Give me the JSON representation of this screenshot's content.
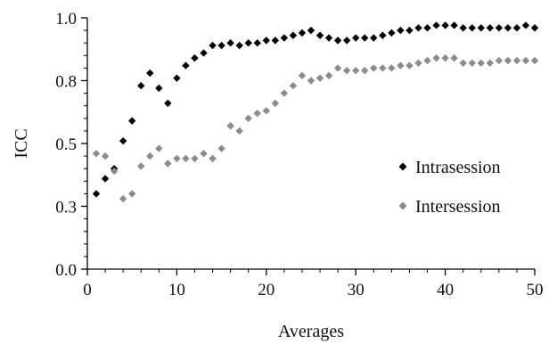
{
  "chart_data": {
    "type": "scatter",
    "xlabel": "Averages",
    "ylabel": "ICC",
    "xlim": [
      0,
      50
    ],
    "ylim": [
      0.0,
      1.0
    ],
    "x_ticks": [
      0,
      10,
      20,
      30,
      40,
      50
    ],
    "y_ticks": [
      0.0,
      0.25,
      0.5,
      0.75,
      1.0
    ],
    "x_tick_labels": [
      "0",
      "10",
      "20",
      "30",
      "40",
      "50"
    ],
    "y_tick_labels": [
      "0.0",
      "0.3",
      "0.5",
      "0.8",
      "1.0"
    ],
    "legend_position": "center-right",
    "grid": false,
    "series": [
      {
        "name": "Intrasession",
        "color": "#000000",
        "marker": "diamond",
        "x": [
          1,
          2,
          3,
          4,
          5,
          6,
          7,
          8,
          9,
          10,
          11,
          12,
          13,
          14,
          15,
          16,
          17,
          18,
          19,
          20,
          21,
          22,
          23,
          24,
          25,
          26,
          27,
          28,
          29,
          30,
          31,
          32,
          33,
          34,
          35,
          36,
          37,
          38,
          39,
          40,
          41,
          42,
          43,
          44,
          45,
          46,
          47,
          48,
          49,
          50
        ],
        "y": [
          0.3,
          0.36,
          0.4,
          0.51,
          0.59,
          0.73,
          0.78,
          0.72,
          0.66,
          0.76,
          0.81,
          0.84,
          0.86,
          0.89,
          0.89,
          0.9,
          0.89,
          0.9,
          0.9,
          0.91,
          0.91,
          0.92,
          0.93,
          0.94,
          0.95,
          0.93,
          0.92,
          0.91,
          0.91,
          0.92,
          0.92,
          0.92,
          0.93,
          0.94,
          0.95,
          0.95,
          0.96,
          0.96,
          0.97,
          0.97,
          0.97,
          0.96,
          0.96,
          0.96,
          0.96,
          0.96,
          0.96,
          0.96,
          0.97,
          0.96
        ]
      },
      {
        "name": "Intersession",
        "color": "#8c8c8c",
        "marker": "diamond",
        "x": [
          1,
          2,
          3,
          4,
          5,
          6,
          7,
          8,
          9,
          10,
          11,
          12,
          13,
          14,
          15,
          16,
          17,
          18,
          19,
          20,
          21,
          22,
          23,
          24,
          25,
          26,
          27,
          28,
          29,
          30,
          31,
          32,
          33,
          34,
          35,
          36,
          37,
          38,
          39,
          40,
          41,
          42,
          43,
          44,
          45,
          46,
          47,
          48,
          49,
          50
        ],
        "y": [
          0.46,
          0.45,
          0.39,
          0.28,
          0.3,
          0.41,
          0.45,
          0.48,
          0.42,
          0.44,
          0.44,
          0.44,
          0.46,
          0.44,
          0.48,
          0.57,
          0.55,
          0.6,
          0.62,
          0.63,
          0.66,
          0.7,
          0.73,
          0.77,
          0.75,
          0.76,
          0.77,
          0.8,
          0.79,
          0.79,
          0.79,
          0.8,
          0.8,
          0.8,
          0.81,
          0.81,
          0.82,
          0.83,
          0.84,
          0.84,
          0.84,
          0.82,
          0.82,
          0.82,
          0.82,
          0.83,
          0.83,
          0.83,
          0.83,
          0.83
        ]
      }
    ]
  }
}
